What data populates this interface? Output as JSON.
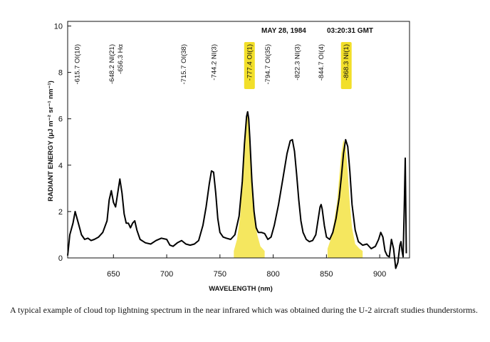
{
  "caption": "A typical example of cloud top lightning spectrum in the near infrared which was obtained during the U-2 aircraft studies thunderstorms.",
  "chart_data": {
    "type": "line",
    "date": "MAY 28, 1984",
    "time": "03:20:31 GMT",
    "xlabel": "WAVELENGTH (nm)",
    "ylabel": "RADIANT ENERGY (μJ m⁻² sr⁻¹ nm⁻¹)",
    "xlim": [
      607,
      928
    ],
    "ylim": [
      0,
      10.2
    ],
    "xticks": [
      650,
      700,
      750,
      800,
      850,
      900
    ],
    "yticks": [
      0,
      2,
      4,
      6,
      8,
      10
    ],
    "grid": false,
    "line_color": "#000000",
    "highlight_color": "#f2df2a",
    "spectrum": {
      "x": [
        607,
        609,
        612,
        614,
        617,
        620,
        623,
        626,
        629,
        632,
        636,
        640,
        644,
        646,
        648,
        650,
        652,
        654,
        656,
        658,
        660,
        662,
        664,
        666,
        668,
        670,
        672,
        675,
        680,
        685,
        690,
        695,
        700,
        703,
        706,
        710,
        714,
        718,
        722,
        726,
        730,
        734,
        737,
        740,
        742,
        744,
        746,
        748,
        750,
        753,
        756,
        760,
        764,
        768,
        771,
        773,
        775,
        776,
        777,
        778,
        780,
        782,
        784,
        786,
        789,
        792,
        795,
        798,
        801,
        805,
        809,
        813,
        816,
        818,
        820,
        822,
        824,
        826,
        828,
        831,
        834,
        837,
        840,
        842,
        844,
        845,
        846,
        848,
        850,
        853,
        856,
        859,
        862,
        864,
        866,
        868,
        870,
        872,
        874,
        877,
        880,
        884,
        888,
        892,
        896,
        899,
        901,
        903,
        905,
        907,
        909,
        911,
        913,
        915,
        917,
        919,
        920,
        921,
        922,
        923,
        924,
        925
      ],
      "y": [
        0.1,
        1.0,
        1.5,
        2.0,
        1.5,
        1.0,
        0.8,
        0.85,
        0.75,
        0.8,
        0.9,
        1.1,
        1.6,
        2.5,
        2.9,
        2.4,
        2.2,
        2.8,
        3.4,
        2.8,
        1.9,
        1.5,
        1.5,
        1.3,
        1.5,
        1.6,
        1.2,
        0.8,
        0.65,
        0.6,
        0.75,
        0.85,
        0.8,
        0.55,
        0.5,
        0.65,
        0.75,
        0.6,
        0.55,
        0.6,
        0.75,
        1.4,
        2.2,
        3.2,
        3.75,
        3.7,
        2.8,
        1.7,
        1.1,
        0.9,
        0.85,
        0.8,
        1.0,
        1.8,
        3.3,
        4.9,
        6.1,
        6.3,
        6.0,
        5.2,
        3.3,
        2.0,
        1.3,
        1.1,
        1.1,
        1.05,
        0.8,
        0.9,
        1.4,
        2.3,
        3.4,
        4.5,
        5.05,
        5.1,
        4.6,
        3.6,
        2.5,
        1.6,
        1.1,
        0.8,
        0.7,
        0.75,
        1.0,
        1.6,
        2.2,
        2.3,
        2.1,
        1.4,
        0.9,
        0.8,
        1.1,
        1.7,
        2.6,
        3.5,
        4.5,
        5.1,
        4.8,
        3.7,
        2.3,
        1.2,
        0.7,
        0.55,
        0.6,
        0.4,
        0.5,
        0.8,
        1.1,
        0.9,
        0.3,
        0.1,
        0.05,
        0.8,
        0.4,
        -0.45,
        -0.2,
        0.55,
        0.7,
        0.3,
        0.05,
        2.0,
        4.3,
        0.2
      ]
    },
    "highlight_peaks": [
      {
        "x": [
          763,
          766,
          769,
          771,
          773,
          775,
          776,
          777,
          778,
          780,
          782,
          785,
          788,
          792
        ],
        "y": [
          0.3,
          0.8,
          1.8,
          3.3,
          4.9,
          6.1,
          6.3,
          6.0,
          5.2,
          3.3,
          2.0,
          1.0,
          0.5,
          0.3
        ]
      },
      {
        "x": [
          851,
          854,
          857,
          860,
          862,
          864,
          866,
          868,
          870,
          872,
          874,
          877,
          881,
          884
        ],
        "y": [
          0.4,
          0.8,
          1.5,
          2.4,
          3.5,
          4.5,
          5.1,
          4.8,
          3.7,
          2.3,
          1.3,
          0.6,
          0.4,
          0.3
        ]
      }
    ],
    "line_labels": [
      {
        "x": 615.7,
        "text": "-615.7 OI(10)",
        "highlight": false
      },
      {
        "x": 648.2,
        "text": "-648.2 NI(21)",
        "highlight": false
      },
      {
        "x": 656.3,
        "text": "-656.3 Hα",
        "highlight": false
      },
      {
        "x": 715.7,
        "text": "-715.7 OI(38)",
        "highlight": false
      },
      {
        "x": 744.2,
        "text": "-744.2 NI(3)",
        "highlight": false
      },
      {
        "x": 777.4,
        "text": "-777.4 OI(1)",
        "highlight": true
      },
      {
        "x": 794.7,
        "text": "-794.7 OI(35)",
        "highlight": false
      },
      {
        "x": 822.3,
        "text": "-822.3 NI(3)",
        "highlight": false
      },
      {
        "x": 844.7,
        "text": "-844.7 OI(4)",
        "highlight": false
      },
      {
        "x": 868.3,
        "text": "-868.3 NI(1)",
        "highlight": true
      }
    ]
  }
}
